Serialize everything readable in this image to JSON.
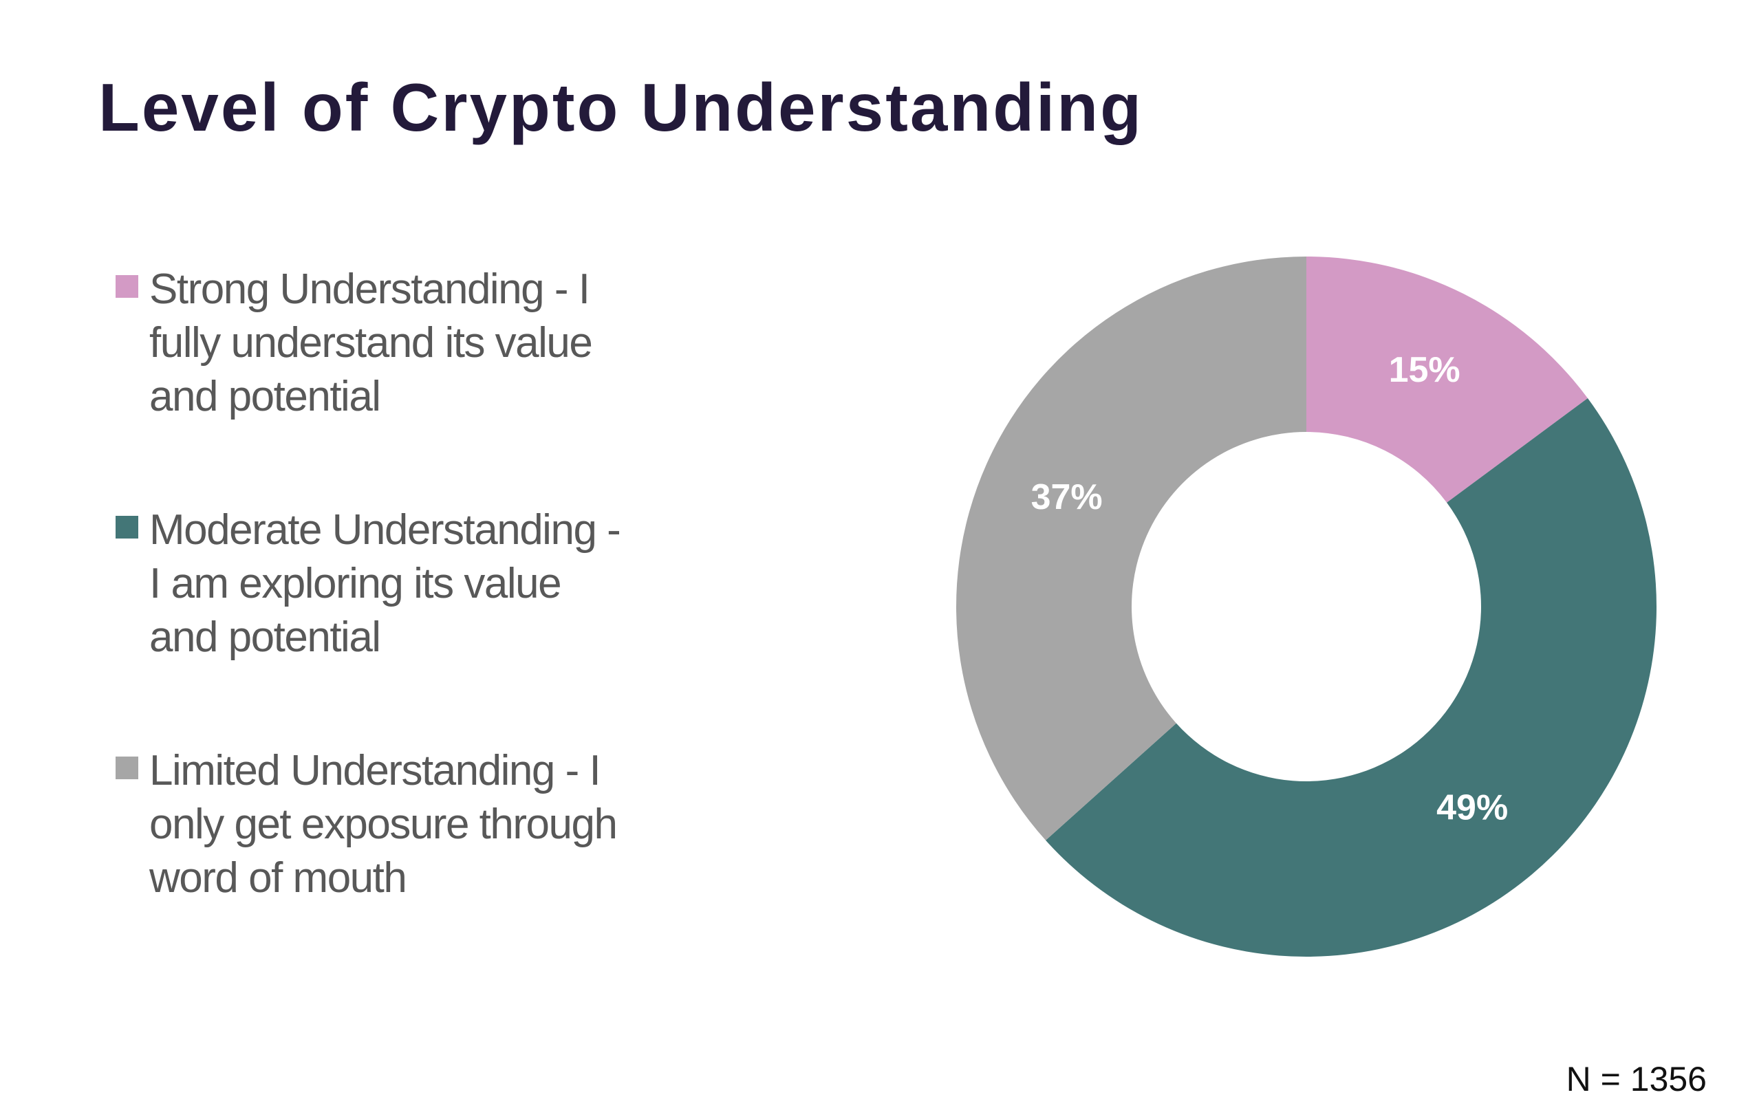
{
  "chart_data": {
    "type": "donut",
    "title": "Level of Crypto Understanding",
    "categories": [
      "Strong Understanding - I fully understand its value and potential",
      "Moderate Understanding - I am exploring its value and potential",
      "Limited Understanding - I only get exposure through word of mouth"
    ],
    "values": [
      15,
      49,
      37
    ],
    "value_labels": [
      "15%",
      "49%",
      "37%"
    ],
    "colors": [
      "#d39ac5",
      "#437677",
      "#a6a6a6"
    ],
    "annotation": "N = 1356"
  }
}
